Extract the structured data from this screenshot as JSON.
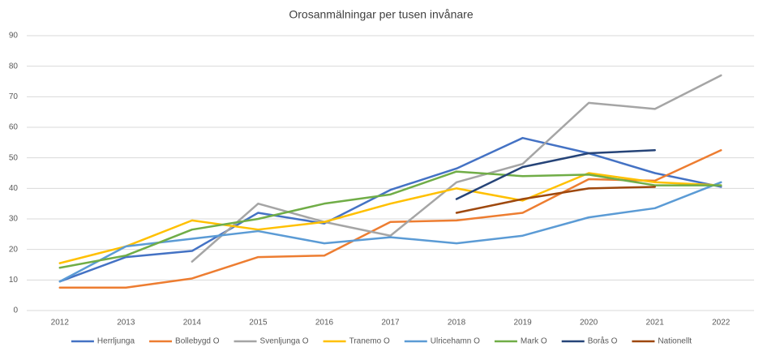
{
  "chart_data": {
    "type": "line",
    "title": "Orosanmälningar per tusen invånare",
    "categories": [
      "2012",
      "2013",
      "2014",
      "2015",
      "2016",
      "2017",
      "2018",
      "2019",
      "2020",
      "2021",
      "2022"
    ],
    "ylim": [
      0,
      90
    ],
    "yticks": [
      0,
      10,
      20,
      30,
      40,
      50,
      60,
      70,
      80,
      90
    ],
    "grid": true,
    "legend": "bottom",
    "series": [
      {
        "name": "Herrljunga",
        "color": "#4472c4",
        "values": [
          9.5,
          17.5,
          19.5,
          32,
          28.5,
          39.5,
          46.5,
          56.5,
          51.5,
          45,
          40.5
        ]
      },
      {
        "name": "Bollebygd O",
        "color": "#ed7d31",
        "values": [
          7.5,
          7.5,
          10.5,
          17.5,
          18,
          29,
          29.5,
          32,
          43,
          42.5,
          52.5
        ]
      },
      {
        "name": "Svenljunga O",
        "color": "#a5a5a5",
        "values": [
          null,
          null,
          16,
          35,
          29,
          24.5,
          42,
          48,
          68,
          66,
          77
        ]
      },
      {
        "name": "Tranemo O",
        "color": "#ffc000",
        "values": [
          15.5,
          21,
          29.5,
          26.5,
          29,
          35,
          40,
          36,
          45,
          42,
          41
        ]
      },
      {
        "name": "Ulricehamn O",
        "color": "#5b9bd5",
        "values": [
          9.5,
          21,
          23.5,
          26,
          22,
          24,
          22,
          24.5,
          30.5,
          33.5,
          42
        ]
      },
      {
        "name": "Mark O",
        "color": "#70ad47",
        "values": [
          14,
          18,
          26.5,
          30,
          35,
          38,
          45.5,
          44,
          44.5,
          41,
          41
        ]
      },
      {
        "name": "Borås O",
        "color": "#264478",
        "values": [
          null,
          null,
          null,
          null,
          null,
          null,
          36.5,
          47,
          51.5,
          52.5,
          null
        ]
      },
      {
        "name": "Nationellt",
        "color": "#9e480e",
        "values": [
          null,
          null,
          null,
          null,
          null,
          null,
          32,
          36.5,
          40,
          40.5,
          null
        ]
      }
    ]
  }
}
